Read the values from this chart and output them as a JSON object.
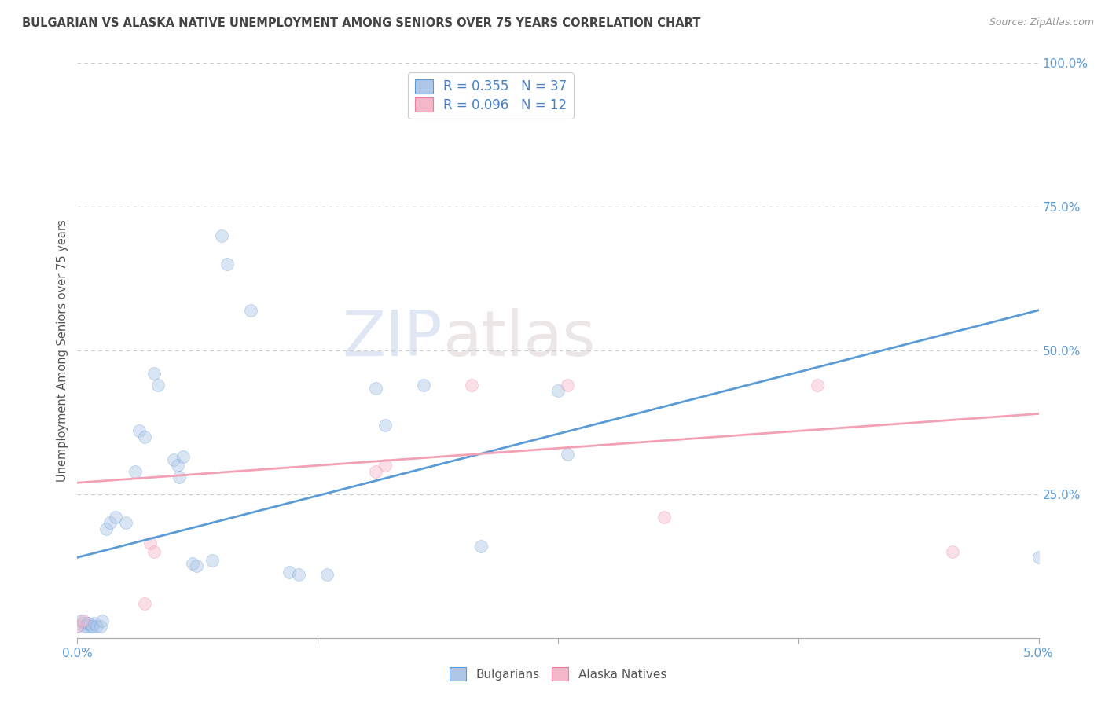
{
  "title": "BULGARIAN VS ALASKA NATIVE UNEMPLOYMENT AMONG SENIORS OVER 75 YEARS CORRELATION CHART",
  "source": "Source: ZipAtlas.com",
  "ylabel": "Unemployment Among Seniors over 75 years",
  "xlim": [
    0.0,
    5.0
  ],
  "ylim": [
    0.0,
    100.0
  ],
  "yticks": [
    0.0,
    25.0,
    50.0,
    75.0,
    100.0
  ],
  "ytick_labels": [
    "",
    "25.0%",
    "50.0%",
    "75.0%",
    "100.0%"
  ],
  "xtick_positions": [
    0.0,
    1.25,
    2.5,
    3.75,
    5.0
  ],
  "legend_labels_bottom": [
    "Bulgarians",
    "Alaska Natives"
  ],
  "watermark_zip": "ZIP",
  "watermark_atlas": "atlas",
  "bulgarian_scatter": [
    [
      0.0,
      2.0
    ],
    [
      0.02,
      3.0
    ],
    [
      0.03,
      2.5
    ],
    [
      0.04,
      2.0
    ],
    [
      0.05,
      2.0
    ],
    [
      0.05,
      2.5
    ],
    [
      0.06,
      2.5
    ],
    [
      0.07,
      2.0
    ],
    [
      0.08,
      2.0
    ],
    [
      0.09,
      2.5
    ],
    [
      0.1,
      2.0
    ],
    [
      0.12,
      2.0
    ],
    [
      0.13,
      3.0
    ],
    [
      0.15,
      19.0
    ],
    [
      0.17,
      20.0
    ],
    [
      0.2,
      21.0
    ],
    [
      0.25,
      20.0
    ],
    [
      0.3,
      29.0
    ],
    [
      0.32,
      36.0
    ],
    [
      0.35,
      35.0
    ],
    [
      0.4,
      46.0
    ],
    [
      0.42,
      44.0
    ],
    [
      0.5,
      31.0
    ],
    [
      0.52,
      30.0
    ],
    [
      0.53,
      28.0
    ],
    [
      0.55,
      31.5
    ],
    [
      0.6,
      13.0
    ],
    [
      0.62,
      12.5
    ],
    [
      0.7,
      13.5
    ],
    [
      0.75,
      70.0
    ],
    [
      0.78,
      65.0
    ],
    [
      0.9,
      57.0
    ],
    [
      1.1,
      11.5
    ],
    [
      1.15,
      11.0
    ],
    [
      1.3,
      11.0
    ],
    [
      1.55,
      43.5
    ],
    [
      1.6,
      37.0
    ],
    [
      1.8,
      44.0
    ],
    [
      2.1,
      16.0
    ],
    [
      2.5,
      43.0
    ],
    [
      2.55,
      32.0
    ],
    [
      5.0,
      14.0
    ]
  ],
  "alaska_scatter": [
    [
      0.0,
      2.0
    ],
    [
      0.03,
      3.0
    ],
    [
      0.35,
      6.0
    ],
    [
      0.38,
      16.5
    ],
    [
      0.4,
      15.0
    ],
    [
      1.55,
      29.0
    ],
    [
      1.6,
      30.0
    ],
    [
      2.05,
      44.0
    ],
    [
      2.55,
      44.0
    ],
    [
      3.05,
      21.0
    ],
    [
      3.85,
      44.0
    ],
    [
      4.55,
      15.0
    ]
  ],
  "bulgarian_line_color": "#5b9bd5",
  "alaska_line_color": "#f4a0b5",
  "bulgarian_line": {
    "x0": 0.0,
    "y0": 14.0,
    "x1": 5.0,
    "y1": 57.0
  },
  "alaska_line": {
    "x0": 0.0,
    "y0": 27.0,
    "x1": 5.0,
    "y1": 39.0
  },
  "bg_color": "#ffffff",
  "plot_bg_color": "#ffffff",
  "grid_color": "#c8c8c8",
  "title_color": "#444444",
  "axis_label_color": "#5b9bd5",
  "marker_size": 130,
  "marker_alpha": 0.45,
  "bulgarian_color": "#aec6e8",
  "bulgarian_edge": "#5b9bd5",
  "alaska_color": "#f4b8c8",
  "alaska_edge": "#e87fa0"
}
